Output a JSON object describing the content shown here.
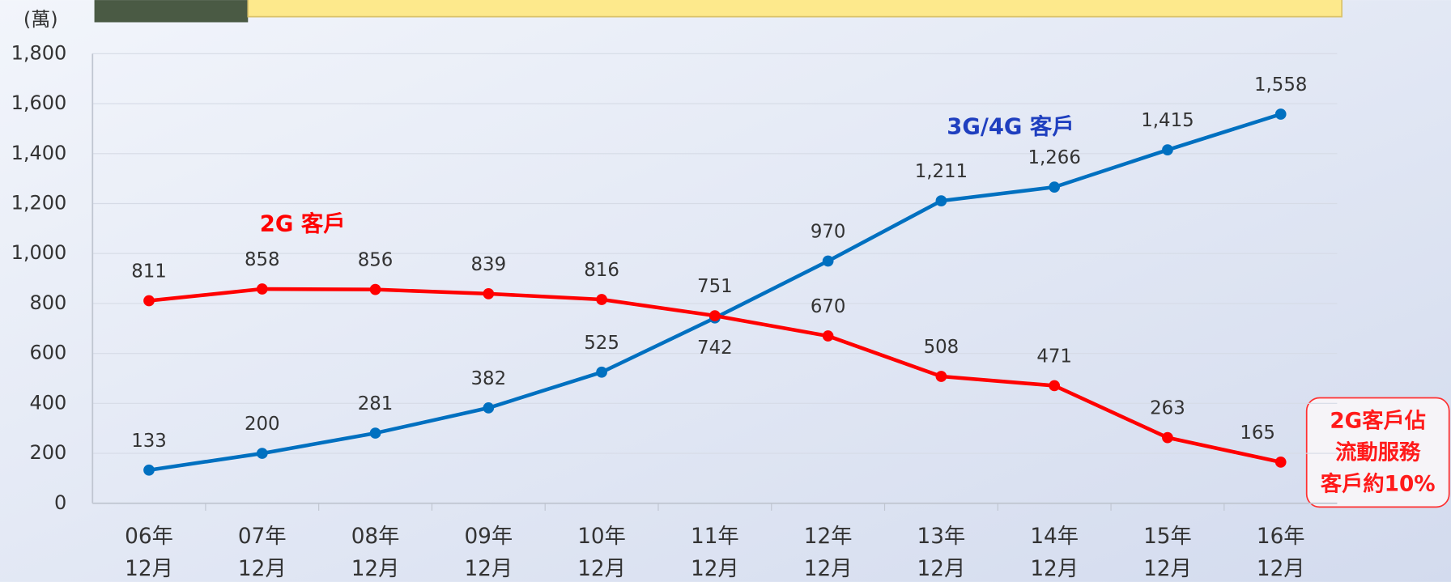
{
  "chart_data": {
    "type": "line",
    "unit_label": "(萬)",
    "categories": [
      [
        "06年",
        "12月"
      ],
      [
        "07年",
        "12月"
      ],
      [
        "08年",
        "12月"
      ],
      [
        "09年",
        "12月"
      ],
      [
        "10年",
        "12月"
      ],
      [
        "11年",
        "12月"
      ],
      [
        "12年",
        "12月"
      ],
      [
        "13年",
        "12月"
      ],
      [
        "14年",
        "12月"
      ],
      [
        "15年",
        "12月"
      ],
      [
        "16年",
        "12月"
      ]
    ],
    "series": [
      {
        "name": "3G/4G 客戶",
        "color": "#0070c0",
        "values": [
          133,
          200,
          281,
          382,
          525,
          742,
          970,
          1211,
          1266,
          1415,
          1558
        ],
        "value_labels": [
          "133",
          "200",
          "281",
          "382",
          "525",
          "742",
          "970",
          "1,211",
          "1,266",
          "1,415",
          "1,558"
        ]
      },
      {
        "name": "2G 客戶",
        "color": "#ff0000",
        "values": [
          811,
          858,
          856,
          839,
          816,
          751,
          670,
          508,
          471,
          263,
          165
        ],
        "value_labels": [
          "811",
          "858",
          "856",
          "839",
          "816",
          "751",
          "670",
          "508",
          "471",
          "263",
          "165"
        ]
      }
    ],
    "ylim": [
      0,
      1800
    ],
    "yticks": [
      0,
      200,
      400,
      600,
      800,
      {
        "value": 1000,
        "label": "1,000"
      },
      {
        "value": 1200,
        "label": "1,200"
      },
      {
        "value": 1400,
        "label": "1,400"
      },
      {
        "value": 1600,
        "label": "1,600"
      },
      {
        "value": 1800,
        "label": "1,800"
      }
    ],
    "grid": true,
    "callout": [
      "2G客戶佔",
      "流動服務",
      "客戶約10%"
    ]
  }
}
